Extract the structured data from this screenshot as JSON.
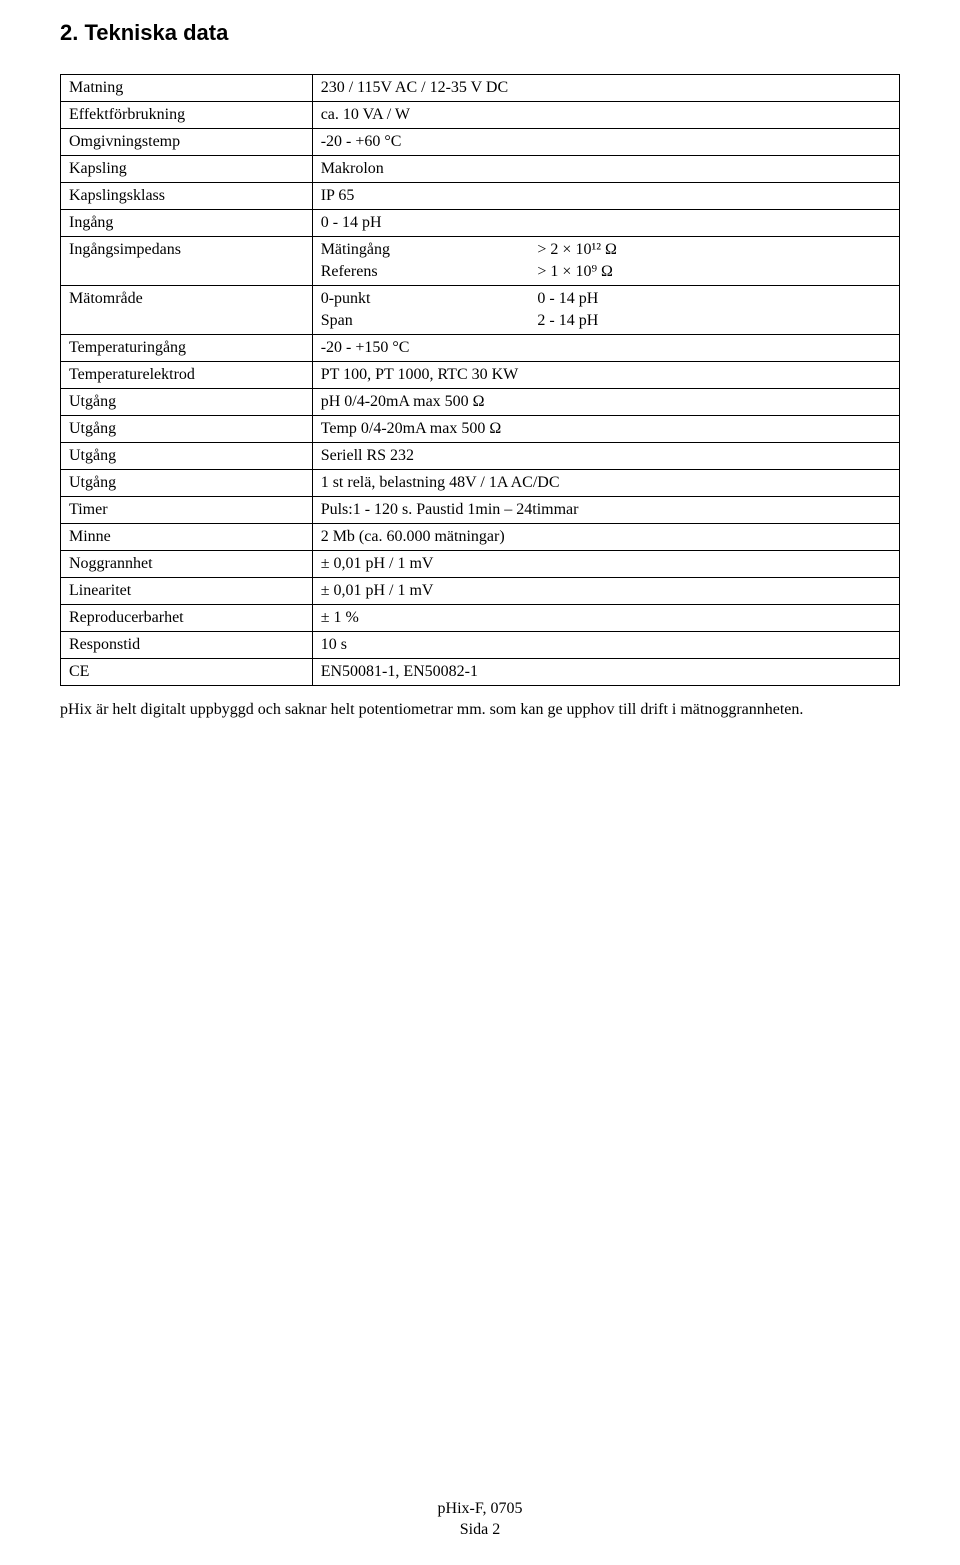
{
  "heading": "2.   Tekniska data",
  "rows": [
    {
      "label": "Matning",
      "value": "230 / 115V AC / 12-35 V DC"
    },
    {
      "label": "Effektförbrukning",
      "value": "ca. 10 VA / W"
    },
    {
      "label": "Omgivningstemp",
      "value": "-20 - +60 °C"
    },
    {
      "label": "Kapsling",
      "value": "Makrolon"
    },
    {
      "label": "Kapslingsklass",
      "value": "IP 65"
    },
    {
      "label": "Ingång",
      "value": "0 - 14 pH"
    },
    {
      "label": "Ingångsimpedans",
      "subrows": [
        {
          "c1": "Mätingång",
          "c2": "> 2 × 10¹² Ω"
        },
        {
          "c1": "Referens",
          "c2": "> 1 × 10⁹ Ω"
        }
      ]
    },
    {
      "label": "Mätområde",
      "subrows": [
        {
          "c1": "0-punkt",
          "c2": "0 - 14 pH"
        },
        {
          "c1": "Span",
          "c2": "2 - 14 pH"
        }
      ]
    },
    {
      "label": "Temperaturingång",
      "value": "-20 - +150 °C"
    },
    {
      "label": "Temperaturelektrod",
      "value": "PT 100, PT 1000, RTC 30 KW"
    },
    {
      "label": "Utgång",
      "value": "pH 0/4-20mA max 500 Ω"
    },
    {
      "label": "Utgång",
      "value": "Temp 0/4-20mA max 500 Ω"
    },
    {
      "label": "Utgång",
      "value": "Seriell RS 232"
    },
    {
      "label": "Utgång",
      "value": "1 st relä, belastning 48V / 1A AC/DC"
    },
    {
      "label": "Timer",
      "value": "Puls:1 - 120 s. Paustid 1min – 24timmar"
    },
    {
      "label": "Minne",
      "value": "2 Mb (ca. 60.000 mätningar)"
    },
    {
      "label": "Noggrannhet",
      "value": "± 0,01 pH / 1 mV"
    },
    {
      "label": "Linearitet",
      "value": "± 0,01 pH / 1 mV"
    },
    {
      "label": "Reproducerbarhet",
      "value": "± 1 %"
    },
    {
      "label": "Responstid",
      "value": "10 s"
    },
    {
      "label": "CE",
      "value": "EN50081-1, EN50082-1"
    }
  ],
  "note": "pHix är helt digitalt uppbyggd och saknar helt potentiometrar mm. som kan ge upphov till drift i mätnoggrannheten.",
  "footer": {
    "line1": "pHix-F, 0705",
    "line2": "Sida 2"
  }
}
